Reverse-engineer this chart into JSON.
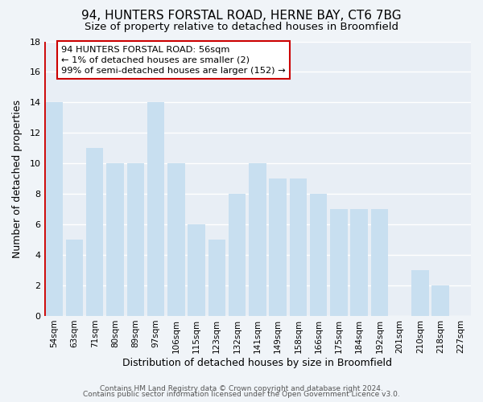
{
  "title": "94, HUNTERS FORSTAL ROAD, HERNE BAY, CT6 7BG",
  "subtitle": "Size of property relative to detached houses in Broomfield",
  "xlabel": "Distribution of detached houses by size in Broomfield",
  "ylabel": "Number of detached properties",
  "categories": [
    "54sqm",
    "63sqm",
    "71sqm",
    "80sqm",
    "89sqm",
    "97sqm",
    "106sqm",
    "115sqm",
    "123sqm",
    "132sqm",
    "141sqm",
    "149sqm",
    "158sqm",
    "166sqm",
    "175sqm",
    "184sqm",
    "192sqm",
    "201sqm",
    "210sqm",
    "218sqm",
    "227sqm"
  ],
  "values": [
    14,
    5,
    11,
    10,
    10,
    14,
    10,
    6,
    5,
    8,
    10,
    9,
    9,
    8,
    7,
    7,
    7,
    0,
    3,
    2,
    0
  ],
  "bar_color": "#c8dff0",
  "marker_line_color": "#cc0000",
  "ylim": [
    0,
    18
  ],
  "yticks": [
    0,
    2,
    4,
    6,
    8,
    10,
    12,
    14,
    16,
    18
  ],
  "annotation_title": "94 HUNTERS FORSTAL ROAD: 56sqm",
  "annotation_line1": "← 1% of detached houses are smaller (2)",
  "annotation_line2": "99% of semi-detached houses are larger (152) →",
  "annotation_box_color": "#ffffff",
  "annotation_box_edge": "#cc0000",
  "footer_line1": "Contains HM Land Registry data © Crown copyright and database right 2024.",
  "footer_line2": "Contains public sector information licensed under the Open Government Licence v3.0.",
  "background_color": "#f0f4f8",
  "plot_background": "#e8eef5",
  "grid_color": "#ffffff",
  "title_fontsize": 11,
  "subtitle_fontsize": 9.5,
  "title_weight": "normal"
}
